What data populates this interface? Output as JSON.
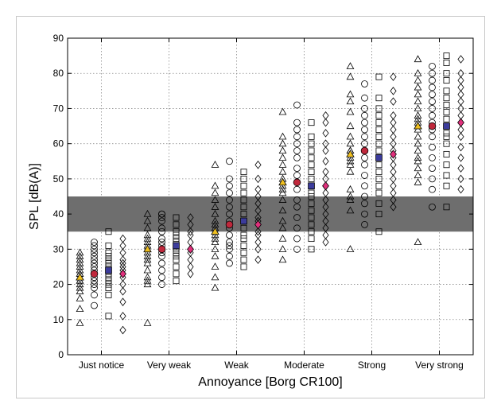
{
  "chart_data": {
    "type": "scatter",
    "title": "",
    "xlabel": "Annoyance [Borg CR100]",
    "ylabel": "SPL [dB(A)]",
    "categories": [
      "Just notice",
      "Very weak",
      "Weak",
      "Moderate",
      "Strong",
      "Very strong"
    ],
    "ylim": [
      0,
      90
    ],
    "yticks": [
      0,
      10,
      20,
      30,
      40,
      50,
      60,
      70,
      80,
      90
    ],
    "grid": true,
    "shaded_band": [
      35,
      45
    ],
    "colors": {
      "band": "#6e6e6e",
      "marker": "#000000",
      "triangle_mean": "#f0c020",
      "circle_mean": "#c0283c",
      "square_mean": "#3c3c9c",
      "diamond_mean": "#e0307c"
    },
    "series": [
      {
        "marker": "triangle",
        "means": [
          22,
          30,
          35,
          49,
          57,
          65
        ],
        "values": [
          [
            9,
            13,
            16,
            18,
            19,
            20,
            21,
            21,
            22,
            22,
            23,
            23,
            24,
            25,
            26,
            27,
            28,
            29
          ],
          [
            9,
            20,
            21,
            22,
            24,
            26,
            27,
            28,
            29,
            30,
            31,
            32,
            33,
            34,
            36,
            38,
            40
          ],
          [
            19,
            22,
            25,
            28,
            30,
            32,
            33,
            34,
            35,
            36,
            37,
            38,
            40,
            42,
            44,
            46,
            48,
            54
          ],
          [
            27,
            30,
            33,
            36,
            38,
            41,
            44,
            46,
            47,
            48,
            49,
            50,
            52,
            54,
            56,
            58,
            60,
            62,
            69
          ],
          [
            30,
            41,
            44,
            45,
            47,
            52,
            54,
            55,
            56,
            57,
            58,
            58,
            60,
            62,
            65,
            69,
            72,
            74,
            79,
            82
          ],
          [
            32,
            49,
            51,
            53,
            55,
            56,
            58,
            60,
            62,
            64,
            65,
            65,
            66,
            67,
            68,
            70,
            72,
            74,
            76,
            78,
            80,
            84
          ]
        ]
      },
      {
        "marker": "circle",
        "means": [
          23,
          30,
          37,
          49,
          58,
          65
        ],
        "values": [
          [
            14,
            17,
            19,
            20,
            21,
            22,
            23,
            24,
            25,
            26,
            27,
            28,
            29,
            30,
            31,
            32
          ],
          [
            20,
            22,
            24,
            26,
            28,
            29,
            30,
            31,
            32,
            33,
            35,
            36,
            38,
            39,
            40,
            40
          ],
          [
            26,
            28,
            30,
            31,
            32,
            34,
            36,
            37,
            38,
            40,
            42,
            44,
            46,
            48,
            50,
            55
          ],
          [
            30,
            33,
            36,
            39,
            42,
            44,
            47,
            49,
            51,
            53,
            56,
            58,
            60,
            62,
            64,
            66,
            71
          ],
          [
            37,
            40,
            43,
            45,
            48,
            51,
            54,
            56,
            58,
            60,
            62,
            64,
            66,
            68,
            70,
            73,
            77
          ],
          [
            42,
            47,
            50,
            53,
            56,
            59,
            62,
            64,
            65,
            66,
            68,
            70,
            72,
            74,
            76,
            78,
            80,
            82
          ]
        ]
      },
      {
        "marker": "square",
        "means": [
          24,
          31,
          38,
          48,
          56,
          65
        ],
        "values": [
          [
            11,
            17,
            19,
            20,
            21,
            22,
            23,
            24,
            25,
            26,
            27,
            28,
            29,
            31,
            35
          ],
          [
            21,
            23,
            25,
            27,
            28,
            29,
            30,
            31,
            32,
            33,
            34,
            35,
            37,
            39
          ],
          [
            25,
            27,
            29,
            31,
            33,
            34,
            36,
            38,
            40,
            42,
            44,
            46,
            48,
            50,
            52
          ],
          [
            30,
            33,
            35,
            37,
            39,
            41,
            43,
            45,
            46,
            48,
            50,
            52,
            54,
            56,
            58,
            60,
            62,
            66
          ],
          [
            35,
            40,
            43,
            46,
            48,
            50,
            52,
            54,
            56,
            58,
            60,
            62,
            64,
            66,
            68,
            70,
            73,
            79
          ],
          [
            42,
            48,
            51,
            54,
            57,
            60,
            62,
            63,
            65,
            67,
            69,
            71,
            73,
            75,
            78,
            80,
            83,
            85
          ]
        ]
      },
      {
        "marker": "diamond",
        "means": [
          23,
          30,
          37,
          48,
          57,
          66
        ],
        "values": [
          [
            7,
            11,
            15,
            18,
            20,
            22,
            23,
            24,
            25,
            26,
            27,
            29,
            31,
            33
          ],
          [
            23,
            25,
            27,
            29,
            30,
            32,
            34,
            35,
            37,
            39
          ],
          [
            27,
            30,
            32,
            34,
            35,
            37,
            38,
            39,
            41,
            43,
            45,
            47,
            50,
            54
          ],
          [
            32,
            34,
            36,
            38,
            40,
            42,
            44,
            46,
            48,
            50,
            52,
            55,
            58,
            60,
            63,
            66,
            68
          ],
          [
            42,
            44,
            46,
            48,
            50,
            52,
            54,
            56,
            58,
            60,
            62,
            64,
            66,
            68,
            72,
            75,
            79
          ],
          [
            47,
            50,
            53,
            56,
            59,
            62,
            64,
            66,
            68,
            70,
            72,
            74,
            76,
            78,
            80,
            84
          ]
        ]
      }
    ]
  }
}
